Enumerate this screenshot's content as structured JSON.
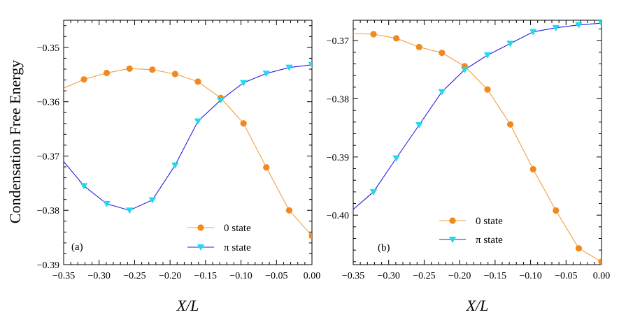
{
  "figure": {
    "ylabel": "Condensation Free Energy",
    "xlabel": "X/L"
  },
  "colors": {
    "zero_state": "#f08a1e",
    "zero_state_line": "#f0a040",
    "pi_state_marker": "#22d8f0",
    "pi_state_line": "#2020e0"
  },
  "chart_data": [
    {
      "type": "line",
      "panel": "(a)",
      "xlabel": "X/L",
      "ylabel": "Condensation Free Energy",
      "xlim": [
        -0.35,
        0.0
      ],
      "ylim": [
        -0.39,
        -0.345
      ],
      "xticks": [
        -0.35,
        -0.3,
        -0.25,
        -0.2,
        -0.15,
        -0.1,
        -0.05,
        0.0
      ],
      "xtick_labels": [
        "−0.35",
        "−0.30",
        "−0.25",
        "−0.20",
        "−0.15",
        "−0.10",
        "−0.05",
        "0.00"
      ],
      "yticks": [
        -0.39,
        -0.38,
        -0.37,
        -0.36,
        -0.35
      ],
      "ytick_labels": [
        "−0.39",
        "−0.38",
        "−0.37",
        "−0.36",
        "−0.35"
      ],
      "legend": [
        "0 state",
        "π state"
      ],
      "legend_position": "bottom-right",
      "series": [
        {
          "name": "0 state",
          "marker": "circle",
          "line": [
            [
              -0.35,
              -0.3575
            ],
            [
              -0.3214,
              -0.3559
            ],
            [
              -0.2893,
              -0.3547
            ],
            [
              -0.2571,
              -0.3539
            ],
            [
              -0.225,
              -0.3541
            ],
            [
              -0.1929,
              -0.3549
            ],
            [
              -0.1607,
              -0.3563
            ],
            [
              -0.1286,
              -0.3593
            ],
            [
              -0.0964,
              -0.364
            ],
            [
              -0.0643,
              -0.3721
            ],
            [
              -0.0321,
              -0.38
            ],
            [
              0.0,
              -0.3847
            ]
          ],
          "points": [
            [
              -0.3214,
              -0.3559
            ],
            [
              -0.2893,
              -0.3547
            ],
            [
              -0.2571,
              -0.3539
            ],
            [
              -0.225,
              -0.3541
            ],
            [
              -0.1929,
              -0.3549
            ],
            [
              -0.1607,
              -0.3563
            ],
            [
              -0.1286,
              -0.3593
            ],
            [
              -0.0964,
              -0.364
            ],
            [
              -0.0643,
              -0.3721
            ],
            [
              -0.0321,
              -0.38
            ],
            [
              0.0,
              -0.3847
            ]
          ]
        },
        {
          "name": "π state",
          "marker": "triangle-down",
          "line": [
            [
              -0.35,
              -0.371
            ],
            [
              -0.3214,
              -0.3755
            ],
            [
              -0.2893,
              -0.3788
            ],
            [
              -0.2571,
              -0.38
            ],
            [
              -0.225,
              -0.3781
            ],
            [
              -0.1929,
              -0.3717
            ],
            [
              -0.1607,
              -0.3636
            ],
            [
              -0.1286,
              -0.3597
            ],
            [
              -0.0964,
              -0.3565
            ],
            [
              -0.0643,
              -0.3548
            ],
            [
              -0.0321,
              -0.3537
            ],
            [
              0.0,
              -0.3532
            ]
          ],
          "points": [
            [
              -0.3214,
              -0.3755
            ],
            [
              -0.2893,
              -0.3788
            ],
            [
              -0.2571,
              -0.38
            ],
            [
              -0.225,
              -0.3781
            ],
            [
              -0.1929,
              -0.3717
            ],
            [
              -0.1607,
              -0.3636
            ],
            [
              -0.1286,
              -0.3597
            ],
            [
              -0.0964,
              -0.3565
            ],
            [
              -0.0643,
              -0.3548
            ],
            [
              -0.0321,
              -0.3537
            ],
            [
              0.0,
              -0.3532
            ]
          ]
        }
      ]
    },
    {
      "type": "line",
      "panel": "(b)",
      "xlabel": "X/L",
      "ylabel": "",
      "xlim": [
        -0.35,
        0.0
      ],
      "ylim": [
        -0.4085,
        -0.3665
      ],
      "xticks": [
        -0.35,
        -0.3,
        -0.25,
        -0.2,
        -0.15,
        -0.1,
        -0.05,
        0.0
      ],
      "xtick_labels": [
        "−0.35",
        "−0.30",
        "−0.25",
        "−0.20",
        "−0.15",
        "−0.10",
        "−0.05",
        "0.00"
      ],
      "yticks": [
        -0.4,
        -0.39,
        -0.38,
        -0.37
      ],
      "ytick_labels": [
        "−0.40",
        "−0.39",
        "−0.38",
        "−0.37"
      ],
      "legend": [
        "0 state",
        "π state"
      ],
      "legend_position": "bottom-right",
      "series": [
        {
          "name": "0 state",
          "marker": "circle",
          "line": [
            [
              -0.35,
              -0.3688
            ],
            [
              -0.3214,
              -0.3689
            ],
            [
              -0.2893,
              -0.3696
            ],
            [
              -0.2571,
              -0.3711
            ],
            [
              -0.225,
              -0.3721
            ],
            [
              -0.1929,
              -0.3744
            ],
            [
              -0.1607,
              -0.3784
            ],
            [
              -0.1286,
              -0.3844
            ],
            [
              -0.0964,
              -0.3921
            ],
            [
              -0.0643,
              -0.3992
            ],
            [
              -0.0321,
              -0.4057
            ],
            [
              0.0,
              -0.408
            ]
          ],
          "points": [
            [
              -0.3214,
              -0.3689
            ],
            [
              -0.2893,
              -0.3696
            ],
            [
              -0.2571,
              -0.3711
            ],
            [
              -0.225,
              -0.3721
            ],
            [
              -0.1929,
              -0.3744
            ],
            [
              -0.1607,
              -0.3784
            ],
            [
              -0.1286,
              -0.3844
            ],
            [
              -0.0964,
              -0.3921
            ],
            [
              -0.0643,
              -0.3992
            ],
            [
              -0.0321,
              -0.4057
            ],
            [
              0.0,
              -0.408
            ]
          ]
        },
        {
          "name": "π state",
          "marker": "triangle-down",
          "line": [
            [
              -0.35,
              -0.399
            ],
            [
              -0.3214,
              -0.396
            ],
            [
              -0.2893,
              -0.3902
            ],
            [
              -0.2571,
              -0.3845
            ],
            [
              -0.225,
              -0.3788
            ],
            [
              -0.1929,
              -0.375
            ],
            [
              -0.1607,
              -0.3725
            ],
            [
              -0.1286,
              -0.3705
            ],
            [
              -0.0964,
              -0.3685
            ],
            [
              -0.0643,
              -0.3678
            ],
            [
              -0.0321,
              -0.3673
            ],
            [
              0.0,
              -0.367
            ]
          ],
          "points": [
            [
              -0.3214,
              -0.396
            ],
            [
              -0.2893,
              -0.3902
            ],
            [
              -0.2571,
              -0.3845
            ],
            [
              -0.225,
              -0.3788
            ],
            [
              -0.1929,
              -0.375
            ],
            [
              -0.1607,
              -0.3725
            ],
            [
              -0.1286,
              -0.3705
            ],
            [
              -0.0964,
              -0.3685
            ],
            [
              -0.0643,
              -0.3678
            ],
            [
              -0.0321,
              -0.3673
            ],
            [
              0.0,
              -0.367
            ]
          ]
        }
      ]
    }
  ]
}
